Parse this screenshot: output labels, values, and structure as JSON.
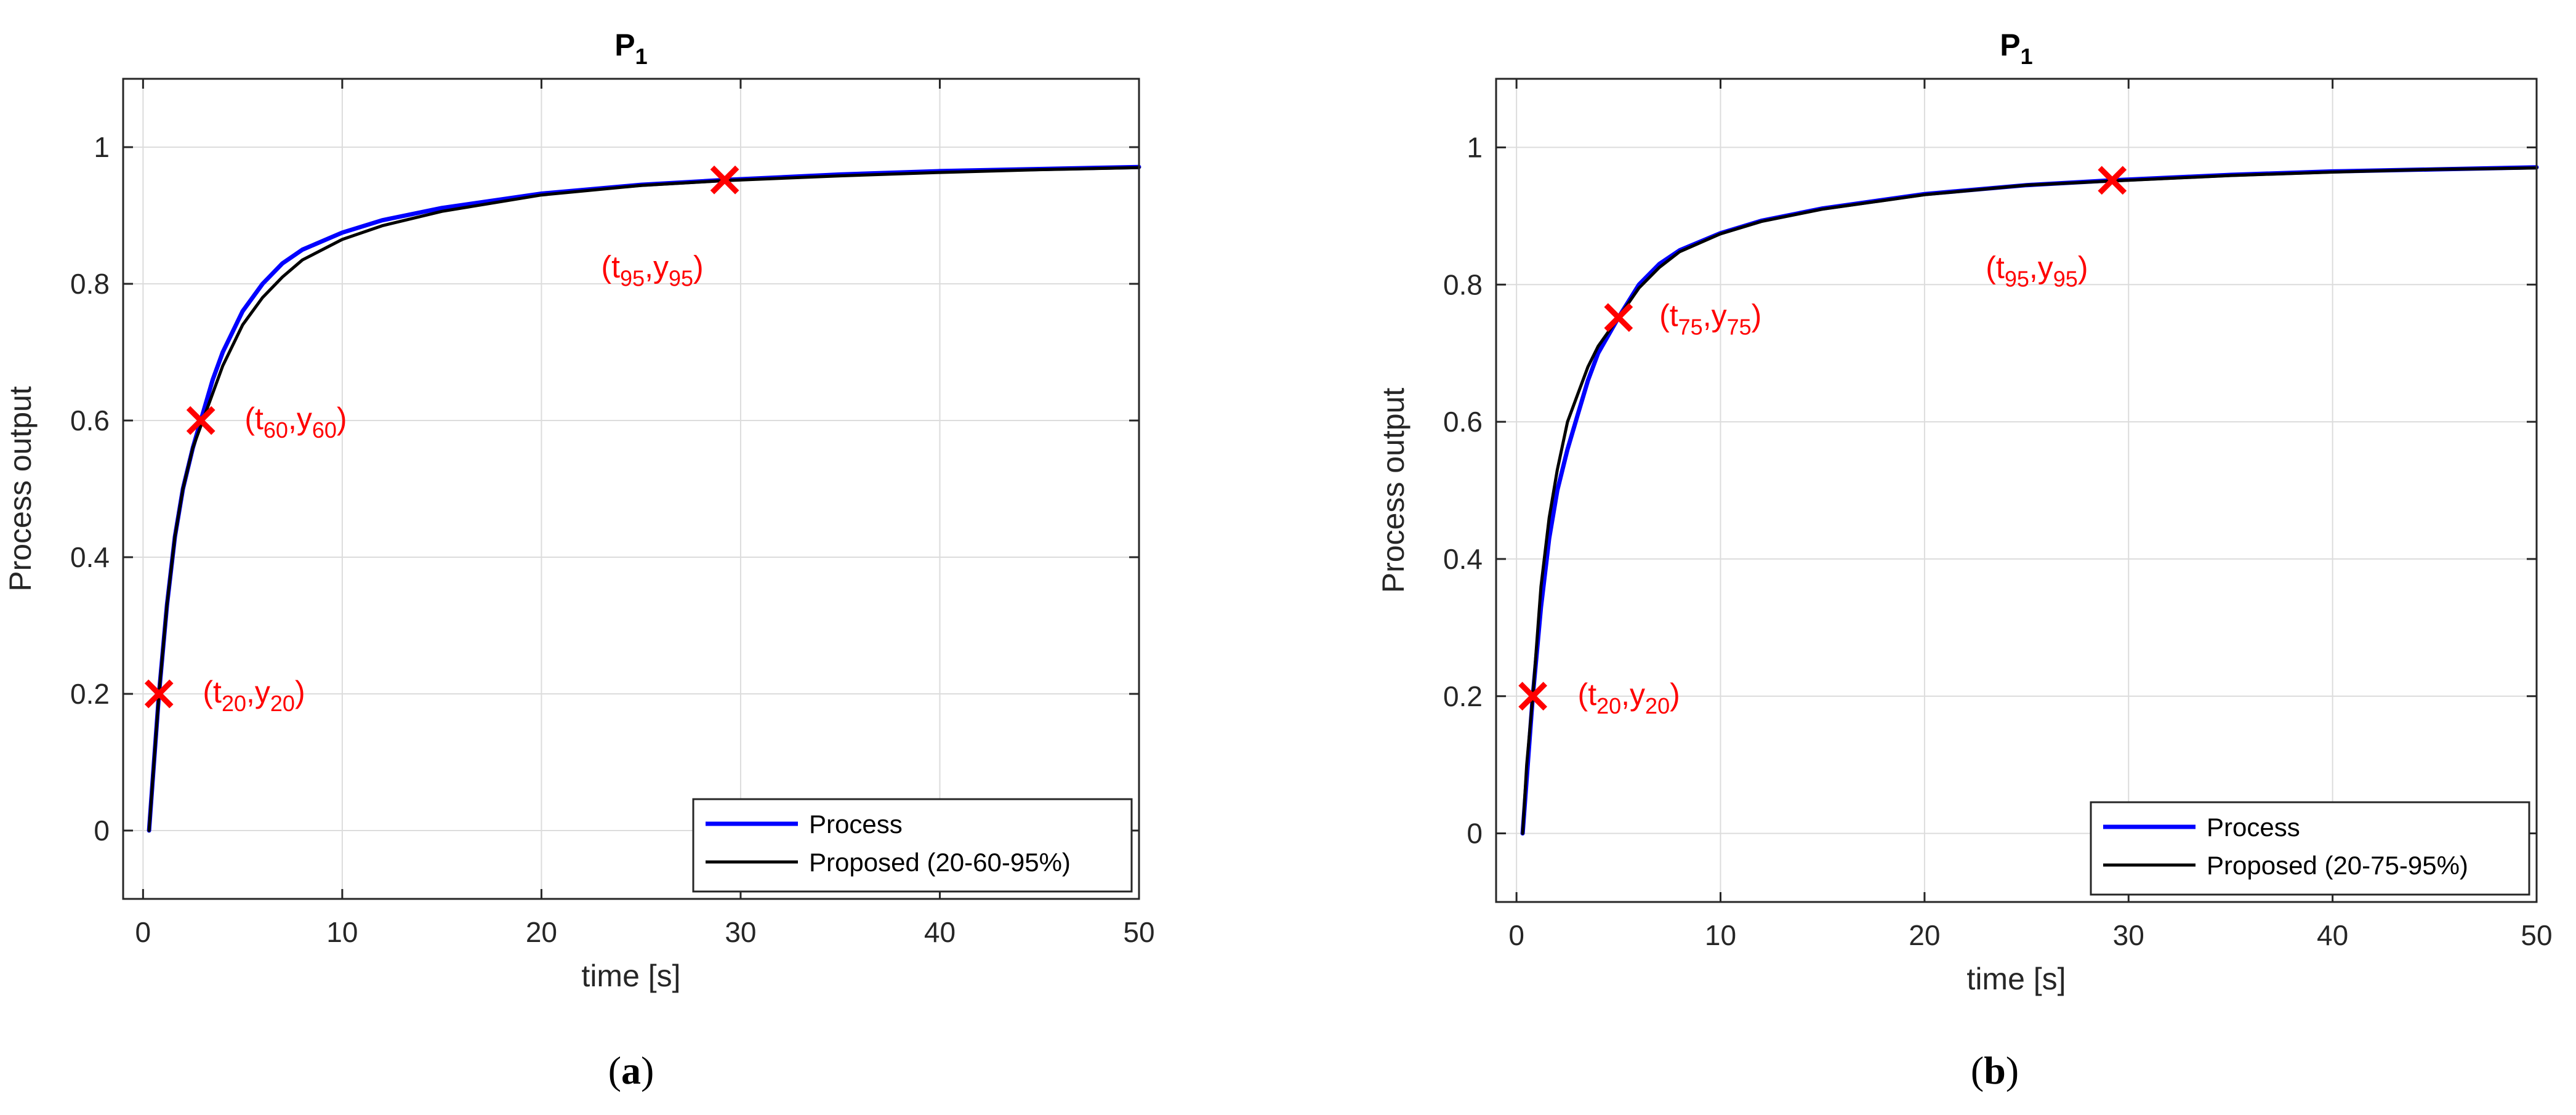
{
  "figure": {
    "panels": [
      {
        "caption_open": "(",
        "caption_letter": "a",
        "caption_close": ")",
        "legend": [
          "Process",
          "Proposed (20-60-95%)"
        ]
      },
      {
        "caption_open": "(",
        "caption_letter": "b",
        "caption_close": ")",
        "legend": [
          "Process",
          "Proposed (20-75-95%)"
        ]
      }
    ]
  },
  "colors": {
    "process": "#0000ff",
    "proposed": "#000000",
    "marker": "#ff0000",
    "grid": "#dcdcdc",
    "axis": "#262626"
  },
  "chart_data": [
    {
      "type": "line",
      "title_main": "P",
      "title_sub": "1",
      "xlabel": "time [s]",
      "ylabel": "Process output",
      "xlim": [
        -1,
        50
      ],
      "ylim": [
        -0.1,
        1.1
      ],
      "xticks": [
        0,
        10,
        20,
        30,
        40,
        50
      ],
      "xtick_labels": [
        "0",
        "10",
        "20",
        "30",
        "40",
        "50"
      ],
      "yticks": [
        0,
        0.2,
        0.4,
        0.6,
        0.8,
        1
      ],
      "ytick_labels": [
        "0",
        "0.2",
        "0.4",
        "0.6",
        "0.8",
        "1"
      ],
      "grid": true,
      "legend_position": "bottom-right",
      "series": [
        {
          "name": "Process",
          "x": [
            0.3,
            0.5,
            0.8,
            1.2,
            1.6,
            2,
            2.5,
            3,
            3.5,
            4,
            5,
            6,
            7,
            8,
            10,
            12,
            15,
            20,
            25,
            29.2,
            35,
            40,
            45,
            50
          ],
          "y": [
            0,
            0.08,
            0.2,
            0.33,
            0.43,
            0.5,
            0.56,
            0.61,
            0.66,
            0.7,
            0.76,
            0.8,
            0.83,
            0.85,
            0.875,
            0.893,
            0.911,
            0.932,
            0.945,
            0.952,
            0.96,
            0.965,
            0.968,
            0.971
          ]
        },
        {
          "name": "Proposed (20-60-95%)",
          "x": [
            0.3,
            0.5,
            0.8,
            1.2,
            1.6,
            2,
            2.5,
            3,
            3.5,
            4,
            5,
            6,
            7,
            8,
            10,
            12,
            15,
            20,
            25,
            29.2,
            35,
            40,
            45,
            50
          ],
          "y": [
            0,
            0.08,
            0.2,
            0.33,
            0.43,
            0.5,
            0.56,
            0.6,
            0.64,
            0.68,
            0.74,
            0.78,
            0.81,
            0.835,
            0.865,
            0.885,
            0.906,
            0.93,
            0.944,
            0.951,
            0.958,
            0.963,
            0.967,
            0.97
          ]
        }
      ],
      "markers": [
        {
          "x": 0.8,
          "y": 0.2,
          "label_open": "(t",
          "label_sub1": "20",
          "label_mid": ",y",
          "label_sub2": "20",
          "label_close": ")",
          "label_dx": 2.2,
          "label_dy": 0
        },
        {
          "x": 2.9,
          "y": 0.6,
          "label_open": "(t",
          "label_sub1": "60",
          "label_mid": ",y",
          "label_sub2": "60",
          "label_close": ")",
          "label_dx": 2.2,
          "label_dy": 0
        },
        {
          "x": 29.2,
          "y": 0.952,
          "label_open": "(t",
          "label_sub1": "95",
          "label_mid": ",y",
          "label_sub2": "95",
          "label_close": ")",
          "label_dx": -2.3,
          "label_dy": -0.13
        }
      ]
    },
    {
      "type": "line",
      "title_main": "P",
      "title_sub": "1",
      "xlabel": "time [s]",
      "ylabel": "Process output",
      "xlim": [
        -1,
        50
      ],
      "ylim": [
        -0.1,
        1.1
      ],
      "xticks": [
        0,
        10,
        20,
        30,
        40,
        50
      ],
      "xtick_labels": [
        "0",
        "10",
        "20",
        "30",
        "40",
        "50"
      ],
      "yticks": [
        0,
        0.2,
        0.4,
        0.6,
        0.8,
        1
      ],
      "ytick_labels": [
        "0",
        "0.2",
        "0.4",
        "0.6",
        "0.8",
        "1"
      ],
      "grid": true,
      "legend_position": "bottom-right",
      "series": [
        {
          "name": "Process",
          "x": [
            0.3,
            0.5,
            0.8,
            1.2,
            1.6,
            2,
            2.5,
            3,
            3.5,
            4,
            5,
            6,
            7,
            8,
            10,
            12,
            15,
            20,
            25,
            29.2,
            35,
            40,
            45,
            50
          ],
          "y": [
            0,
            0.08,
            0.2,
            0.33,
            0.43,
            0.5,
            0.56,
            0.61,
            0.66,
            0.7,
            0.752,
            0.8,
            0.83,
            0.85,
            0.875,
            0.893,
            0.911,
            0.932,
            0.945,
            0.952,
            0.96,
            0.965,
            0.968,
            0.971
          ]
        },
        {
          "name": "Proposed (20-75-95%)",
          "x": [
            0.3,
            0.5,
            0.8,
            1.2,
            1.6,
            2,
            2.5,
            3,
            3.5,
            4,
            5,
            6,
            7,
            8,
            10,
            12,
            15,
            20,
            25,
            29.2,
            35,
            40,
            45,
            50
          ],
          "y": [
            0,
            0.1,
            0.2,
            0.36,
            0.46,
            0.53,
            0.6,
            0.64,
            0.68,
            0.71,
            0.752,
            0.795,
            0.825,
            0.848,
            0.874,
            0.892,
            0.91,
            0.931,
            0.945,
            0.951,
            0.959,
            0.964,
            0.968,
            0.97
          ]
        }
      ],
      "markers": [
        {
          "x": 0.8,
          "y": 0.2,
          "label_open": "(t",
          "label_sub1": "20",
          "label_mid": ",y",
          "label_sub2": "20",
          "label_close": ")",
          "label_dx": 2.2,
          "label_dy": 0
        },
        {
          "x": 5.0,
          "y": 0.752,
          "label_open": "(t",
          "label_sub1": "75",
          "label_mid": ",y",
          "label_sub2": "75",
          "label_close": ")",
          "label_dx": 2.0,
          "label_dy": 0
        },
        {
          "x": 29.2,
          "y": 0.952,
          "label_open": "(t",
          "label_sub1": "95",
          "label_mid": ",y",
          "label_sub2": "95",
          "label_close": ")",
          "label_dx": -2.3,
          "label_dy": -0.13
        }
      ]
    }
  ]
}
